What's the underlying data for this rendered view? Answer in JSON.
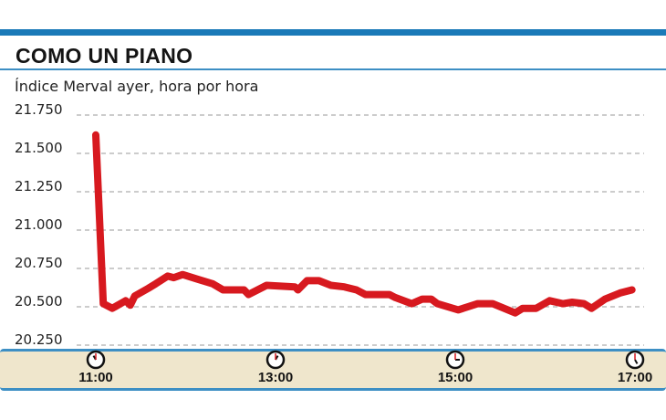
{
  "chart_data": {
    "type": "line",
    "title": "COMO UN PIANO",
    "subtitle": "Índice Merval ayer, hora por hora",
    "y_ticks": [
      "21.750",
      "21.500",
      "21.250",
      "21.000",
      "20.750",
      "20.500",
      "20.250"
    ],
    "y_tick_values": [
      21750,
      21500,
      21250,
      21000,
      20750,
      20500,
      20250
    ],
    "ylim": [
      20250,
      21750
    ],
    "x_ticks": [
      "11:00",
      "13:00",
      "15:00",
      "17:00"
    ],
    "xlim": [
      "11:00",
      "17:00"
    ],
    "grid": true,
    "series": [
      {
        "color": "#d7191f",
        "points": [
          [
            "11:00",
            21620
          ],
          [
            "11:05",
            20520
          ],
          [
            "11:11",
            20490
          ],
          [
            "11:20",
            20540
          ],
          [
            "11:23",
            20510
          ],
          [
            "11:26",
            20570
          ],
          [
            "11:35",
            20620
          ],
          [
            "11:40",
            20650
          ],
          [
            "11:48",
            20700
          ],
          [
            "11:52",
            20690
          ],
          [
            "11:58",
            20710
          ],
          [
            "12:08",
            20680
          ],
          [
            "12:18",
            20650
          ],
          [
            "12:25",
            20610
          ],
          [
            "12:39",
            20610
          ],
          [
            "12:42",
            20580
          ],
          [
            "12:54",
            20640
          ],
          [
            "13:13",
            20630
          ],
          [
            "13:15",
            20610
          ],
          [
            "13:21",
            20670
          ],
          [
            "13:29",
            20670
          ],
          [
            "13:37",
            20640
          ],
          [
            "13:46",
            20630
          ],
          [
            "13:54",
            20610
          ],
          [
            "14:00",
            20580
          ],
          [
            "14:16",
            20580
          ],
          [
            "14:20",
            20560
          ],
          [
            "14:31",
            20520
          ],
          [
            "14:38",
            20550
          ],
          [
            "14:44",
            20550
          ],
          [
            "14:48",
            20520
          ],
          [
            "15:02",
            20480
          ],
          [
            "15:15",
            20520
          ],
          [
            "15:25",
            20520
          ],
          [
            "15:40",
            20460
          ],
          [
            "15:45",
            20490
          ],
          [
            "15:54",
            20490
          ],
          [
            "16:03",
            20540
          ],
          [
            "16:12",
            20520
          ],
          [
            "16:18",
            20530
          ],
          [
            "16:26",
            20520
          ],
          [
            "16:31",
            20490
          ],
          [
            "16:40",
            20550
          ],
          [
            "16:50",
            20590
          ],
          [
            "16:58",
            20610
          ]
        ]
      }
    ]
  },
  "colors": {
    "accent_blue": "#1b7ab8",
    "band": "#efe6cc",
    "line": "#d7191f"
  },
  "icons": [
    "clock-icon"
  ]
}
